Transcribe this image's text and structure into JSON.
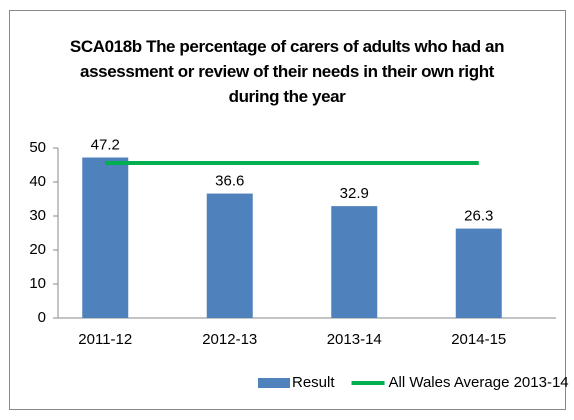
{
  "chart_data": {
    "type": "bar",
    "title": "SCA018b The percentage of carers of adults who had an assessment or review of their needs in their own right during the year",
    "categories": [
      "2011-12",
      "2012-13",
      "2013-14",
      "2014-15"
    ],
    "series": [
      {
        "name": "Result",
        "type": "bar",
        "color": "#4f81bd",
        "values": [
          47.2,
          36.6,
          32.9,
          26.3
        ]
      },
      {
        "name": "All Wales Average 2013-14",
        "type": "line",
        "color": "#00b050",
        "values": [
          45.6,
          45.6,
          45.6,
          45.6
        ]
      }
    ],
    "ylim": [
      0,
      50
    ],
    "yticks": [
      0,
      10,
      20,
      30,
      40,
      50
    ],
    "grid": false,
    "legend": "bottom"
  }
}
